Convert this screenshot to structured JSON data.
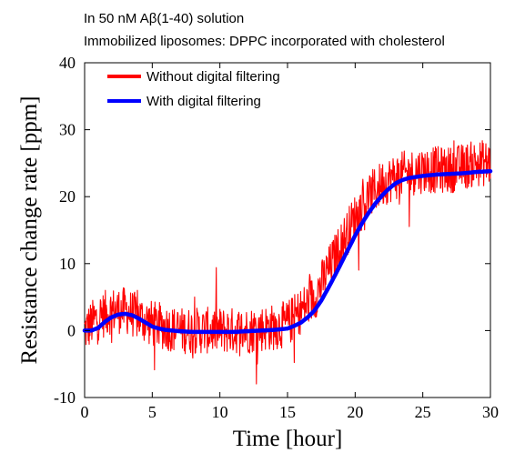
{
  "header": {
    "line1": "In 50 nM Aβ(1-40) solution",
    "line2": "Immobilized liposomes: DPPC incorporated with cholesterol"
  },
  "chart_data": {
    "type": "line",
    "xlabel": "Time [hour]",
    "ylabel": "Resistance change rate [ppm]",
    "xlim": [
      0,
      30
    ],
    "ylim": [
      -10,
      40
    ],
    "xticks": [
      0,
      5,
      10,
      15,
      20,
      25,
      30
    ],
    "yticks": [
      -10,
      0,
      10,
      20,
      30,
      40
    ],
    "grid": false,
    "legend_position": "top-left",
    "series": [
      {
        "name": "Without digital filtering",
        "color": "#ff0000",
        "noisy": true,
        "noise_amplitude": 3.5,
        "x": [
          0,
          0.5,
          1,
          1.5,
          2,
          2.5,
          3,
          3.5,
          4,
          4.5,
          5,
          6,
          7,
          8,
          9,
          10,
          11,
          12,
          13,
          14,
          15,
          15.5,
          16,
          16.5,
          17,
          17.5,
          18,
          18.5,
          19,
          19.5,
          20,
          20.5,
          21,
          21.5,
          22,
          22.5,
          23,
          23.5,
          24,
          24.5,
          25,
          26,
          27,
          28,
          29,
          30
        ],
        "y": [
          0,
          1,
          2,
          2.5,
          3,
          3,
          3,
          2.5,
          2,
          1.5,
          1,
          0.5,
          0,
          0,
          0,
          0,
          0,
          0,
          0.3,
          0.5,
          1,
          2,
          3,
          4,
          5,
          7,
          9,
          11,
          13,
          15,
          17,
          18.5,
          20,
          21,
          22,
          22.5,
          23,
          23.3,
          23.5,
          23.8,
          24,
          24,
          24,
          24.5,
          25,
          25
        ]
      },
      {
        "name": "With digital filtering",
        "color": "#0000ff",
        "x": [
          0,
          0.5,
          1,
          1.5,
          2,
          2.5,
          3,
          3.5,
          4,
          4.5,
          5,
          5.5,
          6,
          7,
          8,
          9,
          10,
          11,
          12,
          13,
          14,
          15,
          15.5,
          16,
          16.5,
          17,
          17.5,
          18,
          18.5,
          19,
          19.5,
          20,
          20.5,
          21,
          21.5,
          22,
          22.5,
          23,
          23.5,
          24,
          25,
          26,
          27,
          28,
          29,
          30
        ],
        "y": [
          0,
          0,
          0.4,
          1.3,
          2,
          2.4,
          2.5,
          2.3,
          1.8,
          1.2,
          0.6,
          0.3,
          0.1,
          -0.1,
          -0.2,
          -0.2,
          -0.2,
          -0.2,
          -0.1,
          0,
          0.1,
          0.3,
          0.7,
          1.2,
          2,
          3,
          4.5,
          6.3,
          8.2,
          10.2,
          12.2,
          14.2,
          16,
          17.6,
          19,
          20.2,
          21.2,
          22,
          22.5,
          22.8,
          23.1,
          23.3,
          23.4,
          23.5,
          23.7,
          23.8
        ]
      }
    ]
  }
}
